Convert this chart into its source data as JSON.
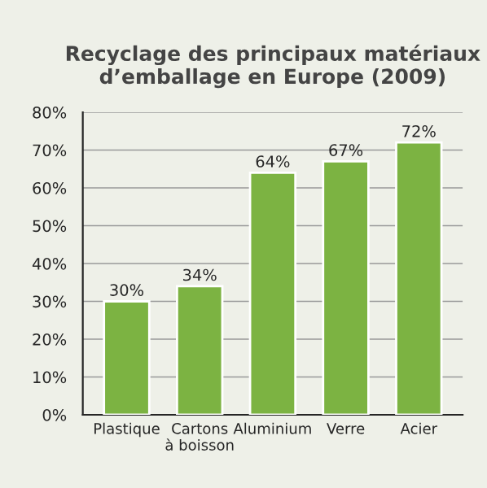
{
  "chart_data": {
    "type": "bar",
    "title": "Recyclage des principaux matériaux d’emballage en Europe (2009)",
    "categories": [
      "Plastique",
      "Cartons\nà boisson",
      "Aluminium",
      "Verre",
      "Acier"
    ],
    "values": [
      30,
      34,
      64,
      67,
      72
    ],
    "value_labels": [
      "30%",
      "34%",
      "64%",
      "67%",
      "72%"
    ],
    "color": "#7cb342",
    "ylim": [
      0,
      80
    ],
    "yticks": [
      {
        "value": 0,
        "label": "0%"
      },
      {
        "value": 10,
        "label": "10%"
      },
      {
        "value": 20,
        "label": "20%"
      },
      {
        "value": 30,
        "label": "30%"
      },
      {
        "value": 40,
        "label": "40%"
      },
      {
        "value": 50,
        "label": "50%"
      },
      {
        "value": 60,
        "label": "60%"
      },
      {
        "value": 70,
        "label": "70%"
      },
      {
        "value": 80,
        "label": "80%"
      }
    ],
    "grid": "y"
  }
}
